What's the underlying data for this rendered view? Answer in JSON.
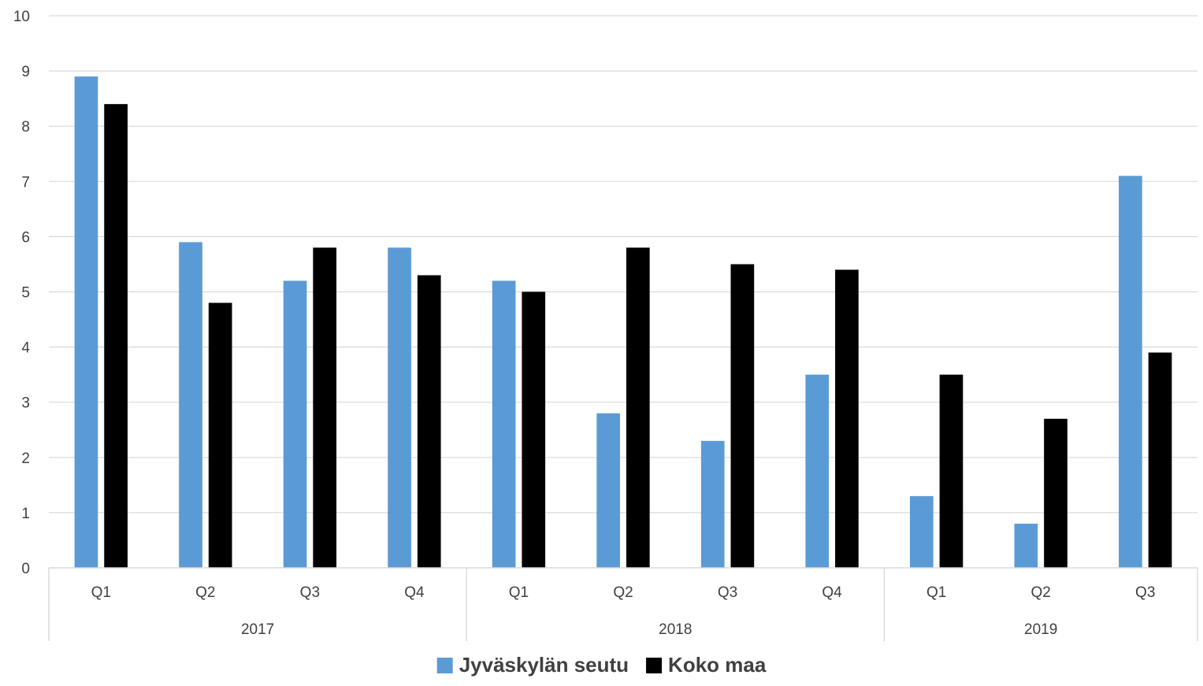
{
  "chart_data": {
    "type": "bar",
    "title": "",
    "xlabel": "",
    "ylabel": "",
    "ylim": [
      0,
      10
    ],
    "yticks": [
      0,
      1,
      2,
      3,
      4,
      5,
      6,
      7,
      8,
      9,
      10
    ],
    "grid": true,
    "legend_position": "bottom",
    "groups": [
      {
        "label": "2017",
        "categories": [
          "Q1",
          "Q2",
          "Q3",
          "Q4"
        ]
      },
      {
        "label": "2018",
        "categories": [
          "Q1",
          "Q2",
          "Q3",
          "Q4"
        ]
      },
      {
        "label": "2019",
        "categories": [
          "Q1",
          "Q2",
          "Q3"
        ]
      }
    ],
    "series": [
      {
        "name": "Jyväskylän seutu",
        "color": "#5b9bd5",
        "values": [
          8.9,
          5.9,
          5.2,
          5.8,
          5.2,
          2.8,
          2.3,
          3.5,
          1.3,
          0.8,
          7.1
        ]
      },
      {
        "name": "Koko maa",
        "color": "#000000",
        "values": [
          8.4,
          4.8,
          5.8,
          5.3,
          5.0,
          5.8,
          5.5,
          5.4,
          3.5,
          2.7,
          3.9
        ]
      }
    ]
  }
}
